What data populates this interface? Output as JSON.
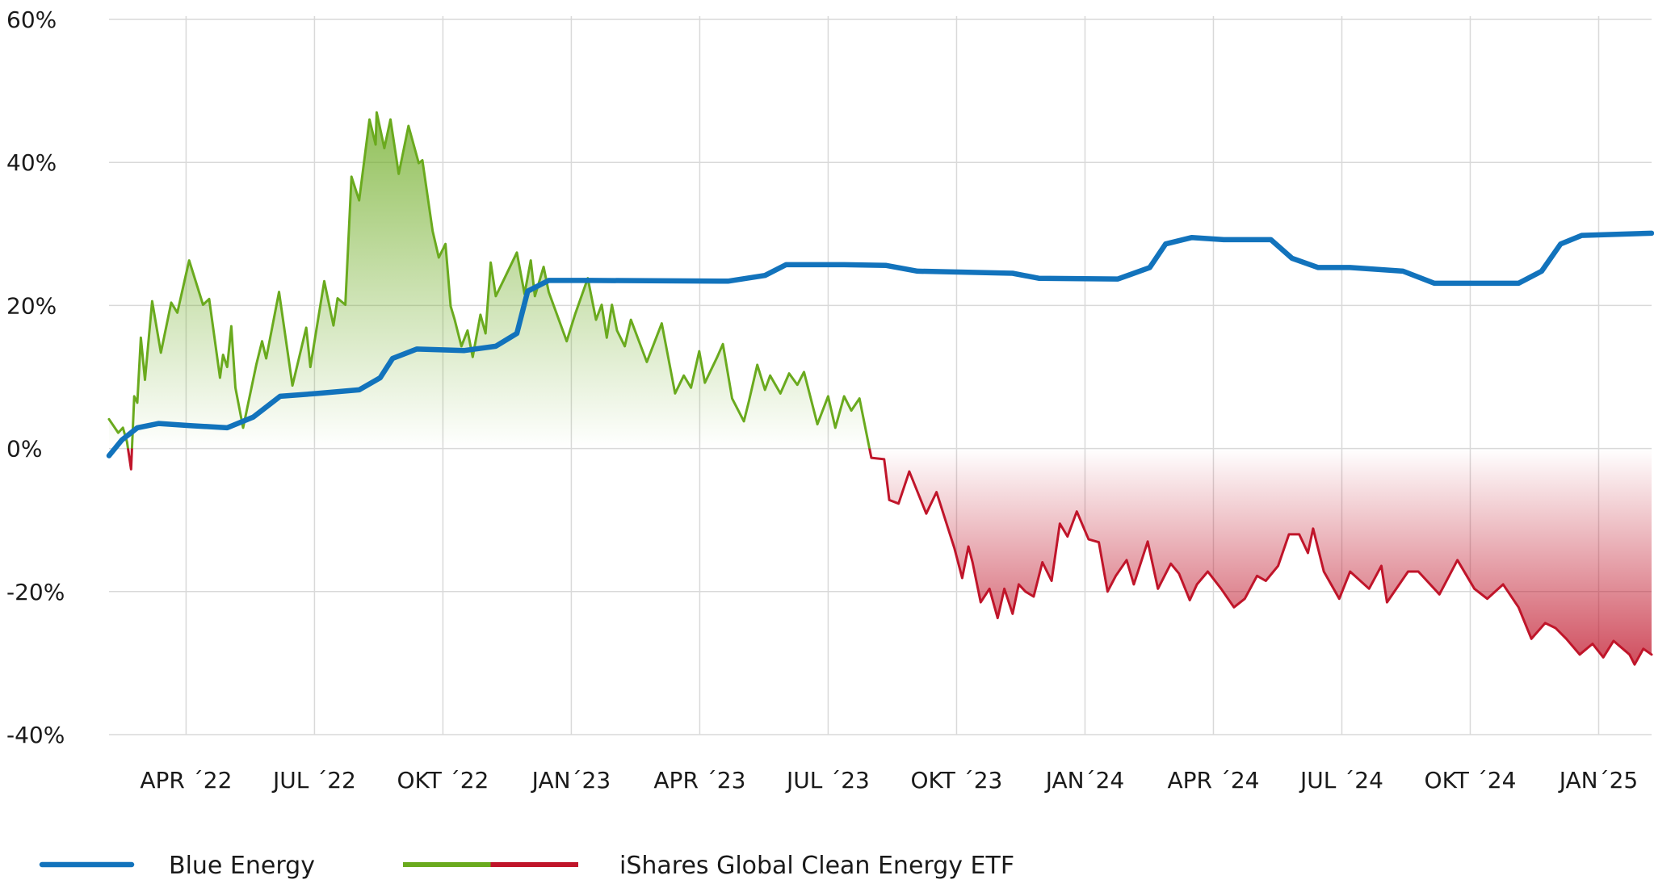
{
  "chart_data": {
    "type": "line",
    "xlim": [
      2022.1,
      2025.103
    ],
    "xticks": [
      {
        "value": 2022.25,
        "label": "APR ´22"
      },
      {
        "value": 2022.5,
        "label": "JUL ´22"
      },
      {
        "value": 2022.75,
        "label": "OKT ´22"
      },
      {
        "value": 2023.0,
        "label": "JAN´23"
      },
      {
        "value": 2023.25,
        "label": "APR ´23"
      },
      {
        "value": 2023.5,
        "label": "JUL ´23"
      },
      {
        "value": 2023.75,
        "label": "OKT ´23"
      },
      {
        "value": 2024.0,
        "label": "JAN´24"
      },
      {
        "value": 2024.25,
        "label": "APR ´24"
      },
      {
        "value": 2024.5,
        "label": "JUL ´24"
      },
      {
        "value": 2024.75,
        "label": "OKT ´24"
      },
      {
        "value": 2025.0,
        "label": "JAN´25"
      }
    ],
    "ylim": [
      -40,
      60
    ],
    "yticks": [
      {
        "value": -40,
        "label": "-40%"
      },
      {
        "value": -20,
        "label": "-20%"
      },
      {
        "value": 0,
        "label": "0%"
      },
      {
        "value": 20,
        "label": "20%"
      },
      {
        "value": 40,
        "label": "40%"
      },
      {
        "value": 60,
        "label": "60%"
      }
    ],
    "grid": true,
    "legend": "bottom",
    "series": [
      {
        "name": "Blue Energy",
        "color": "#1273bc",
        "x": [
          2022.1,
          2022.125,
          2022.155,
          2022.197,
          2022.258,
          2022.33,
          2022.381,
          2022.433,
          2022.505,
          2022.587,
          2022.628,
          2022.652,
          2022.699,
          2022.792,
          2022.853,
          2022.894,
          2022.915,
          2022.956,
          2023.038,
          2023.305,
          2023.377,
          2023.418,
          2023.531,
          2023.613,
          2023.674,
          2023.859,
          2023.91,
          2024.064,
          2024.126,
          2024.157,
          2024.208,
          2024.27,
          2024.362,
          2024.403,
          2024.454,
          2024.516,
          2024.619,
          2024.68,
          2024.844,
          2024.889,
          2024.926,
          2024.967,
          2025.103
        ],
        "values": [
          -1,
          1.2,
          2.9,
          3.5,
          3.2,
          2.9,
          4.4,
          7.3,
          7.7,
          8.2,
          9.9,
          12.6,
          13.9,
          13.7,
          14.3,
          16.1,
          22.0,
          23.5,
          23.5,
          23.4,
          24.2,
          25.7,
          25.7,
          25.6,
          24.8,
          24.5,
          23.8,
          23.7,
          25.3,
          28.6,
          29.5,
          29.2,
          29.2,
          26.6,
          25.3,
          25.3,
          24.8,
          23.1,
          23.1,
          24.8,
          28.6,
          29.8,
          30.1
        ]
      },
      {
        "name": "iShares Global Clean Energy ETF",
        "color": "#6aaa1e",
        "negative_color": "#c0152a",
        "x": [
          2022.1,
          2022.118,
          2022.127,
          2022.135,
          2022.143,
          2022.149,
          2022.155,
          2022.162,
          2022.17,
          2022.184,
          2022.201,
          2022.221,
          2022.233,
          2022.256,
          2022.283,
          2022.295,
          2022.316,
          2022.322,
          2022.33,
          2022.338,
          2022.346,
          2022.361,
          2022.373,
          2022.387,
          2022.398,
          2022.406,
          2022.431,
          2022.457,
          2022.484,
          2022.492,
          2022.519,
          2022.537,
          2022.545,
          2022.56,
          2022.572,
          2022.587,
          2022.607,
          2022.619,
          2022.621,
          2022.636,
          2022.648,
          2022.664,
          2022.683,
          2022.703,
          2022.71,
          2022.73,
          2022.742,
          2022.755,
          2022.765,
          2022.773,
          2022.786,
          2022.798,
          2022.808,
          2022.823,
          2022.833,
          2022.843,
          2022.853,
          2022.87,
          2022.894,
          2022.909,
          2022.921,
          2022.929,
          2022.946,
          2022.956,
          2022.991,
          2023.007,
          2023.032,
          2023.048,
          2023.059,
          2023.069,
          2023.079,
          2023.089,
          2023.104,
          2023.116,
          2023.147,
          2023.176,
          2023.202,
          2023.219,
          2023.233,
          2023.249,
          2023.26,
          2023.284,
          2023.295,
          2023.313,
          2023.336,
          2023.346,
          2023.362,
          2023.377,
          2023.387,
          2023.407,
          2023.424,
          2023.44,
          2023.453,
          2023.479,
          2023.5,
          2023.514,
          2023.531,
          2023.545,
          2023.561,
          2023.584,
          2023.609,
          2023.619,
          2023.637,
          2023.658,
          2023.691,
          2023.711,
          2023.746,
          2023.761,
          2023.773,
          2023.781,
          2023.797,
          2023.814,
          2023.83,
          2023.843,
          2023.859,
          2023.871,
          2023.884,
          2023.9,
          2023.917,
          2023.935,
          2023.951,
          2023.966,
          2023.984,
          2024.007,
          2024.027,
          2024.044,
          2024.06,
          2024.081,
          2024.095,
          2024.122,
          2024.142,
          2024.167,
          2024.183,
          2024.204,
          2024.218,
          2024.239,
          2024.265,
          2024.29,
          2024.311,
          2024.335,
          2024.352,
          2024.376,
          2024.397,
          2024.417,
          2024.434,
          2024.444,
          2024.465,
          2024.495,
          2024.516,
          2024.553,
          2024.577,
          2024.588,
          2024.629,
          2024.649,
          2024.69,
          2024.725,
          2024.758,
          2024.783,
          2024.814,
          2024.844,
          2024.869,
          2024.896,
          2024.916,
          2024.937,
          2024.963,
          2024.988,
          2025.009,
          2025.029,
          2025.06,
          2025.07,
          2025.087,
          2025.103
        ],
        "values": [
          4.1,
          2.2,
          2.9,
          0.9,
          -2.9,
          7.3,
          6.4,
          15.5,
          9.6,
          20.6,
          13.4,
          20.4,
          19,
          26.3,
          20.1,
          20.9,
          9.9,
          13.1,
          11.4,
          17.1,
          8.5,
          2.9,
          7,
          11.8,
          15,
          12.6,
          21.9,
          8.8,
          16.9,
          11.4,
          23.4,
          17.2,
          21,
          20.1,
          38,
          34.7,
          46,
          42.5,
          47,
          42,
          46,
          38.4,
          45.1,
          39.9,
          40.3,
          30.4,
          26.7,
          28.6,
          19.9,
          18,
          14.3,
          16.5,
          12.8,
          18.7,
          16.1,
          26,
          21.3,
          23.8,
          27.4,
          21.6,
          26.3,
          21.3,
          25.4,
          21.9,
          15,
          18.7,
          23.8,
          18,
          20.1,
          15.5,
          20.1,
          16.5,
          14.3,
          18,
          12.1,
          17.5,
          7.7,
          10.2,
          8.5,
          13.6,
          9.2,
          12.8,
          14.6,
          7,
          3.8,
          6.7,
          11.7,
          8.2,
          10.2,
          7.7,
          10.5,
          8.9,
          10.7,
          3.4,
          7.3,
          2.9,
          7.3,
          5.3,
          7,
          -1.3,
          -1.5,
          -7.2,
          -7.7,
          -3.2,
          -9.1,
          -6.1,
          -14,
          -18.1,
          -13.7,
          -15.9,
          -21.5,
          -19.6,
          -23.7,
          -19.6,
          -23.1,
          -19,
          -20,
          -20.7,
          -15.9,
          -18.5,
          -10.5,
          -12.3,
          -8.8,
          -12.7,
          -13.1,
          -20,
          -17.8,
          -15.6,
          -19,
          -13,
          -19.6,
          -16.1,
          -17.5,
          -21.2,
          -19,
          -17.2,
          -19.6,
          -22.2,
          -21,
          -17.8,
          -18.5,
          -16.4,
          -12,
          -12,
          -14.6,
          -11.2,
          -17.2,
          -21,
          -17.2,
          -19.6,
          -16.4,
          -21.5,
          -17.2,
          -17.2,
          -20.4,
          -15.6,
          -19.6,
          -21,
          -19,
          -22.2,
          -26.6,
          -24.4,
          -25.1,
          -26.6,
          -28.8,
          -27.3,
          -29.2,
          -26.9,
          -28.8,
          -30.2,
          -28,
          -28.8
        ]
      }
    ]
  }
}
